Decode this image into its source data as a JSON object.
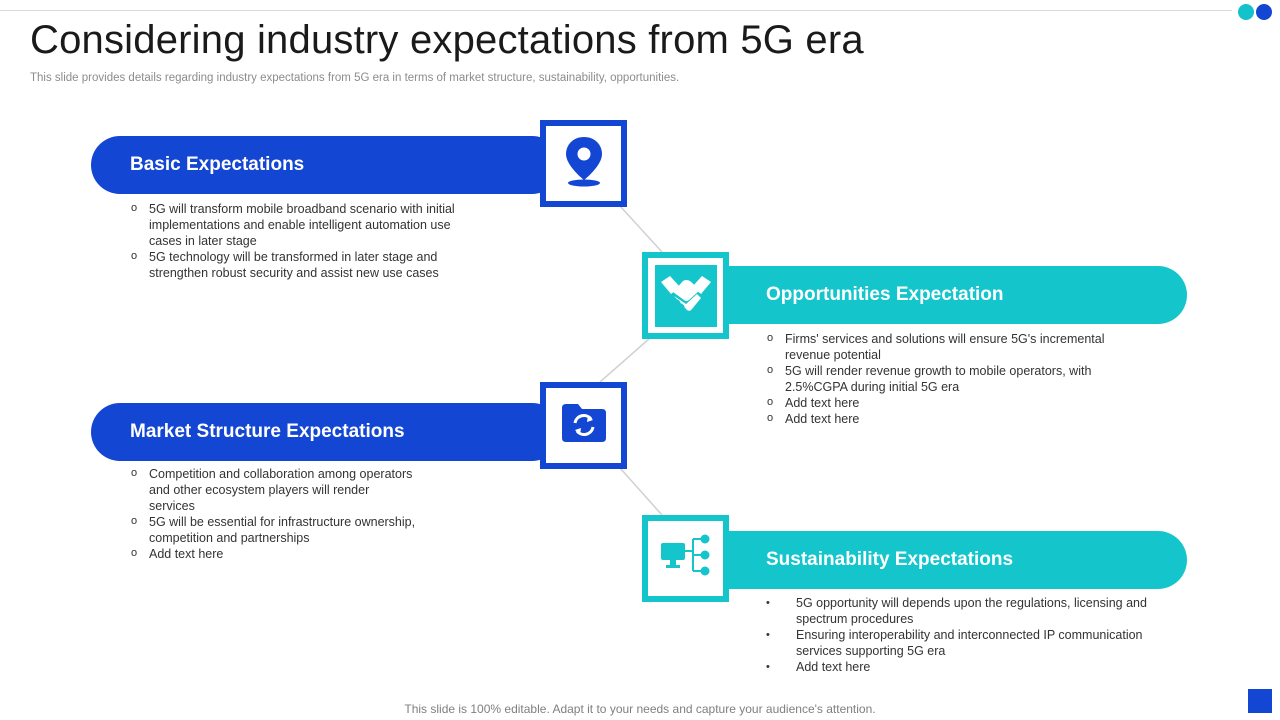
{
  "slide": {
    "title": "Considering industry expectations from 5G era",
    "subtitle": "This slide provides details regarding industry expectations from 5G era in terms of market structure, sustainability, opportunities.",
    "footer": "This slide is 100% editable. Adapt it to your needs and capture your audience's attention."
  },
  "colors": {
    "blue": "#1446d4",
    "teal": "#14c6cc"
  },
  "sections": {
    "basic": {
      "label": "Basic Expectations",
      "icon": "location-pin-icon",
      "bullets": [
        "5G will transform mobile broadband  scenario with initial implementations and enable intelligent automation use cases in later stage",
        "5G technology will be transformed in later stage and strengthen robust security and assist new use cases"
      ]
    },
    "opportunities": {
      "label": "Opportunities Expectation",
      "icon": "handshake-icon",
      "bullets": [
        "Firms' services and solutions will ensure 5G's incremental revenue  potential",
        "5G will render revenue  growth to mobile operators, with 2.5%CGPA during initial 5G era",
        "Add text here",
        "Add text here"
      ]
    },
    "market": {
      "label": "Market Structure Expectations",
      "icon": "folder-sync-icon",
      "bullets": [
        "Competition and collaboration  among operators  and other ecosystem players will render  services",
        "5G will be essential for infrastructure ownership,  competition and partnerships",
        "Add text here"
      ]
    },
    "sustainability": {
      "label": "Sustainability Expectations",
      "icon": "computer-network-icon",
      "bullets": [
        "5G opportunity will depends upon the regulations, licensing and spectrum procedures",
        "Ensuring interoperability and interconnected IP communication services supporting 5G era",
        "Add text here"
      ]
    }
  }
}
